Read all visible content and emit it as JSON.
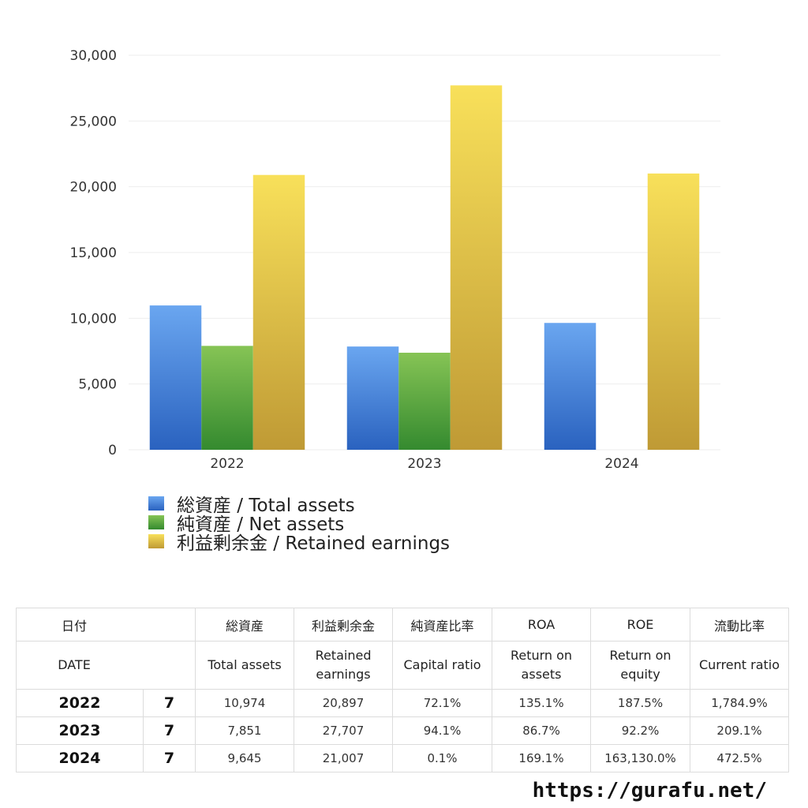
{
  "chart_data": {
    "type": "bar",
    "categories": [
      "2022",
      "2023",
      "2024"
    ],
    "series": [
      {
        "name": "総資産 / Total assets",
        "values": [
          10974,
          7851,
          9645
        ]
      },
      {
        "name": "純資産 / Net assets",
        "values": [
          7900,
          7380,
          0
        ]
      },
      {
        "name": "利益剰余金 / Retained earnings",
        "values": [
          20897,
          27707,
          21007
        ]
      }
    ],
    "ylim": [
      0,
      30000
    ],
    "yticks": [
      "0",
      "5,000",
      "10,000",
      "15,000",
      "20,000",
      "25,000",
      "30,000"
    ],
    "grid": true,
    "legend_position": "bottom-left",
    "colors": {
      "total_assets": [
        "#6aa6f0",
        "#2a62bf"
      ],
      "net_assets": [
        "#86c455",
        "#348a2f"
      ],
      "retained_earnings": [
        "#f8e05a",
        "#bf9a35"
      ]
    }
  },
  "table": {
    "headers_jp": [
      "日付",
      "",
      "総資産",
      "利益剰余金",
      "純資産比率",
      "ROA",
      "ROE",
      "流動比率"
    ],
    "headers_en": [
      "DATE",
      "",
      "Total assets",
      "Retained earnings",
      "Capital ratio",
      "Return on assets",
      "Return on equity",
      "Current ratio"
    ],
    "rows": [
      {
        "year": "2022",
        "month": "7",
        "total_assets": "10,974",
        "retained_earnings": "20,897",
        "capital_ratio": "72.1%",
        "roa": "135.1%",
        "roe": "187.5%",
        "current_ratio": "1,784.9%"
      },
      {
        "year": "2023",
        "month": "7",
        "total_assets": "7,851",
        "retained_earnings": "27,707",
        "capital_ratio": "94.1%",
        "roa": "86.7%",
        "roe": "92.2%",
        "current_ratio": "209.1%"
      },
      {
        "year": "2024",
        "month": "7",
        "total_assets": "9,645",
        "retained_earnings": "21,007",
        "capital_ratio": "0.1%",
        "roa": "169.1%",
        "roe": "163,130.0%",
        "current_ratio": "472.5%"
      }
    ]
  },
  "footer": {
    "url": "https://gurafu.net/"
  }
}
